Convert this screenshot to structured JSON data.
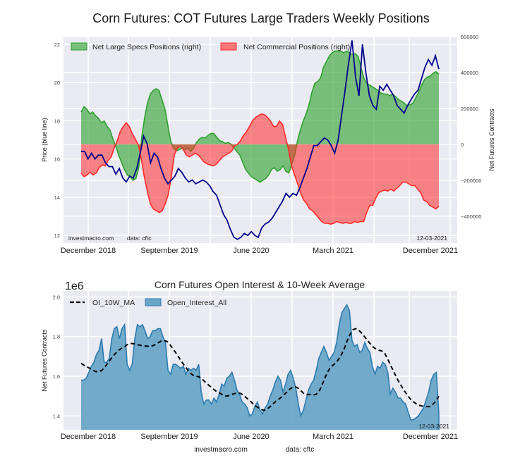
{
  "chart_data": [
    {
      "type": "line",
      "title": "Corn Futures: COT Futures Large Traders Weekly Positions",
      "ylabel": "Price (blue line)",
      "ylabel_right": "Net Futures Contracts",
      "ylim": [
        11.6,
        22.4
      ],
      "ylim_right": [
        -550000,
        600000
      ],
      "yticks": [
        "12",
        "14",
        "16",
        "18",
        "20",
        "22"
      ],
      "yticks_right": [
        "600000",
        "400000",
        "200000",
        "0",
        "−200000",
        "−400000"
      ],
      "xticks": [
        "December 2018",
        "September 2019",
        "June 2020",
        "March 2021",
        "December 2021"
      ],
      "legend": [
        "Net Large Specs Positions (right)",
        "Net Commercial Positions (right)"
      ],
      "legend_position": "top-left",
      "grid": true,
      "annotations": {
        "source": "investmacro.com",
        "data": "data: cftc",
        "date": "12-03-2021"
      },
      "colors": {
        "specs": "#2ca02c",
        "commercial": "#ff2a2a",
        "price": "#00008b"
      },
      "series": [
        {
          "name": "Net Large Specs Positions (right)",
          "axis": "right",
          "values": [
            180000,
            210000,
            195000,
            170000,
            180000,
            160000,
            145000,
            120000,
            130000,
            100000,
            80000,
            30000,
            -10000,
            -60000,
            -100000,
            -140000,
            -170000,
            -180000,
            -200000,
            -190000,
            -130000,
            40000,
            150000,
            230000,
            280000,
            300000,
            310000,
            300000,
            250000,
            200000,
            110000,
            20000,
            -20000,
            -35000,
            -30000,
            -20000,
            -30000,
            -20000,
            -40000,
            -20000,
            10000,
            30000,
            40000,
            35000,
            50000,
            60000,
            60000,
            40000,
            20000,
            15000,
            5000,
            10000,
            0,
            -20000,
            -40000,
            -60000,
            -100000,
            -140000,
            -160000,
            -180000,
            -190000,
            -200000,
            -210000,
            -200000,
            -190000,
            -170000,
            -140000,
            -130000,
            -150000,
            -140000,
            -120000,
            -150000,
            -160000,
            -110000,
            -60000,
            20000,
            80000,
            130000,
            170000,
            220000,
            290000,
            340000,
            350000,
            370000,
            430000,
            460000,
            490000,
            510000,
            520000,
            520000,
            520000,
            510000,
            520000,
            510000,
            500000,
            505000,
            490000,
            430000,
            370000,
            340000,
            330000,
            320000,
            310000,
            300000,
            285000,
            280000,
            280000,
            270000,
            280000,
            265000,
            250000,
            240000,
            230000,
            215000,
            220000,
            230000,
            260000,
            290000,
            330000,
            360000,
            375000,
            380000,
            395000,
            405000,
            390000
          ]
        },
        {
          "name": "Net Commercial Positions (right)",
          "axis": "right",
          "values": [
            -160000,
            -180000,
            -170000,
            -155000,
            -170000,
            -160000,
            -130000,
            -115000,
            -120000,
            -90000,
            -70000,
            -20000,
            20000,
            70000,
            100000,
            120000,
            100000,
            60000,
            30000,
            0,
            -80000,
            -180000,
            -260000,
            -330000,
            -360000,
            -370000,
            -380000,
            -370000,
            -330000,
            -280000,
            -180000,
            -60000,
            -20000,
            -10000,
            -30000,
            -60000,
            -70000,
            -60000,
            -50000,
            -60000,
            -80000,
            -100000,
            -110000,
            -115000,
            -120000,
            -110000,
            -90000,
            -70000,
            -60000,
            -50000,
            -40000,
            -10000,
            0,
            20000,
            50000,
            70000,
            100000,
            130000,
            150000,
            160000,
            170000,
            165000,
            150000,
            130000,
            100000,
            100000,
            130000,
            110000,
            40000,
            -30000,
            -120000,
            -170000,
            -220000,
            -270000,
            -310000,
            -330000,
            -360000,
            -370000,
            -390000,
            -410000,
            -430000,
            -440000,
            -440000,
            -445000,
            -440000,
            -430000,
            -435000,
            -440000,
            -435000,
            -440000,
            -440000,
            -430000,
            -435000,
            -430000,
            -430000,
            -380000,
            -340000,
            -340000,
            -300000,
            -270000,
            -260000,
            -255000,
            -260000,
            -250000,
            -260000,
            -245000,
            -230000,
            -210000,
            -210000,
            -220000,
            -230000,
            -230000,
            -250000,
            -270000,
            -310000,
            -320000,
            -340000,
            -350000,
            -360000,
            -345000
          ]
        },
        {
          "name": "Price (blue line)",
          "axis": "left",
          "values": [
            16.4,
            16.4,
            16.0,
            16.3,
            16.0,
            16.2,
            16.2,
            15.8,
            15.6,
            15.6,
            15.2,
            15.5,
            15.0,
            14.8,
            15.1,
            15.0,
            15.5,
            16.3,
            17.2,
            16.8,
            15.8,
            16.3,
            16.1,
            15.5,
            15.0,
            14.7,
            14.9,
            15.1,
            15.5,
            15.3,
            15.0,
            14.8,
            14.9,
            14.7,
            14.8,
            14.9,
            14.8,
            14.6,
            14.3,
            14.1,
            13.6,
            13.1,
            12.8,
            12.3,
            11.9,
            11.8,
            11.9,
            12.1,
            12.0,
            12.2,
            12.0,
            11.9,
            12.4,
            12.6,
            12.7,
            12.9,
            13.2,
            13.5,
            13.8,
            14.2,
            14.0,
            14.2,
            14.1,
            14.5,
            15.0,
            15.5,
            16.1,
            16.7,
            16.7,
            16.9,
            17.1,
            17.0,
            16.7,
            16.3,
            17.0,
            18.3,
            19.6,
            21.0,
            22.2,
            20.3,
            19.3,
            22.0,
            20.5,
            19.3,
            18.8,
            18.6,
            19.8,
            19.6,
            19.9,
            19.6,
            19.3,
            18.8,
            18.6,
            18.4,
            18.8,
            19.1,
            19.4,
            19.6,
            20.2,
            20.8,
            21.2,
            20.9,
            21.4,
            20.7
          ]
        }
      ]
    },
    {
      "type": "area",
      "title": "Corn Futures Open Interest & 10-Week Average",
      "ylabel": "Net Futures Contracts",
      "offset_label": "1e6",
      "ylim": [
        1.33,
        2.03
      ],
      "yticks": [
        "1.4",
        "1.6",
        "1.8",
        "2.0"
      ],
      "xticks": [
        "December 2018",
        "September 2019",
        "June 2020",
        "March 2021",
        "December 2021"
      ],
      "legend": [
        "OI_10W_MA",
        "Open_Interest_All"
      ],
      "legend_position": "top-left",
      "grid": true,
      "annotations": {
        "date": "12-03-2021"
      },
      "colors": {
        "area": "#6aa6c8",
        "line": "#2b7bb0",
        "ma": "#000000"
      },
      "series": [
        {
          "name": "Open_Interest_All",
          "values": [
            1.58,
            1.58,
            1.59,
            1.62,
            1.65,
            1.67,
            1.71,
            1.73,
            1.79,
            1.67,
            1.67,
            1.69,
            1.79,
            1.84,
            1.85,
            1.79,
            1.84,
            1.86,
            1.66,
            1.63,
            1.66,
            1.79,
            1.86,
            1.85,
            1.86,
            1.83,
            1.79,
            1.8,
            1.83,
            1.83,
            1.84,
            1.84,
            1.8,
            1.77,
            1.63,
            1.61,
            1.66,
            1.66,
            1.65,
            1.64,
            1.65,
            1.61,
            1.64,
            1.63,
            1.64,
            1.63,
            1.66,
            1.52,
            1.46,
            1.48,
            1.48,
            1.46,
            1.49,
            1.47,
            1.51,
            1.56,
            1.55,
            1.59,
            1.6,
            1.62,
            1.58,
            1.53,
            1.51,
            1.47,
            1.46,
            1.44,
            1.4,
            1.41,
            1.45,
            1.47,
            1.43,
            1.41,
            1.44,
            1.46,
            1.5,
            1.53,
            1.57,
            1.6,
            1.58,
            1.52,
            1.56,
            1.61,
            1.63,
            1.59,
            1.54,
            1.46,
            1.4,
            1.43,
            1.48,
            1.53,
            1.56,
            1.58,
            1.63,
            1.69,
            1.72,
            1.75,
            1.72,
            1.68,
            1.7,
            1.72,
            1.77,
            1.86,
            1.92,
            1.94,
            1.96,
            1.93,
            1.78,
            1.75,
            1.76,
            1.72,
            1.73,
            1.77,
            1.74,
            1.72,
            1.65,
            1.61,
            1.65,
            1.64,
            1.67,
            1.66,
            1.62,
            1.51,
            1.54,
            1.52,
            1.49,
            1.49,
            1.47,
            1.46,
            1.42,
            1.38,
            1.38,
            1.39,
            1.4,
            1.42,
            1.44,
            1.48,
            1.52,
            1.58,
            1.61,
            1.62,
            1.41
          ]
        },
        {
          "name": "OI_10W_MA",
          "values": [
            1.665,
            1.655,
            1.648,
            1.64,
            1.632,
            1.624,
            1.622,
            1.628,
            1.64,
            1.66,
            1.68,
            1.7,
            1.715,
            1.73,
            1.74,
            1.746,
            1.758,
            1.765,
            1.765,
            1.762,
            1.758,
            1.755,
            1.753,
            1.752,
            1.75,
            1.754,
            1.76,
            1.77,
            1.778,
            1.78,
            1.776,
            1.76,
            1.74,
            1.72,
            1.698,
            1.676,
            1.656,
            1.636,
            1.618,
            1.606,
            1.6,
            1.598,
            1.59,
            1.575,
            1.562,
            1.55,
            1.538,
            1.526,
            1.518,
            1.51,
            1.502,
            1.5,
            1.504,
            1.51,
            1.514,
            1.516,
            1.512,
            1.5,
            1.488,
            1.476,
            1.462,
            1.45,
            1.44,
            1.432,
            1.428,
            1.434,
            1.446,
            1.46,
            1.474,
            1.484,
            1.495,
            1.508,
            1.522,
            1.536,
            1.545,
            1.546,
            1.538,
            1.524,
            1.51,
            1.508,
            1.508,
            1.506,
            1.508,
            1.52,
            1.548,
            1.585,
            1.618,
            1.642,
            1.656,
            1.668,
            1.686,
            1.71,
            1.742,
            1.78,
            1.812,
            1.835,
            1.84,
            1.832,
            1.818,
            1.8,
            1.782,
            1.764,
            1.748,
            1.738,
            1.731,
            1.728,
            1.718,
            1.69,
            1.66,
            1.63,
            1.6,
            1.572,
            1.548,
            1.525,
            1.505,
            1.486,
            1.472,
            1.462,
            1.454,
            1.45,
            1.448,
            1.447,
            1.447,
            1.46,
            1.475,
            1.5
          ]
        }
      ]
    }
  ],
  "footer": {
    "site": "investmacro.com",
    "data": "data: cftc"
  }
}
